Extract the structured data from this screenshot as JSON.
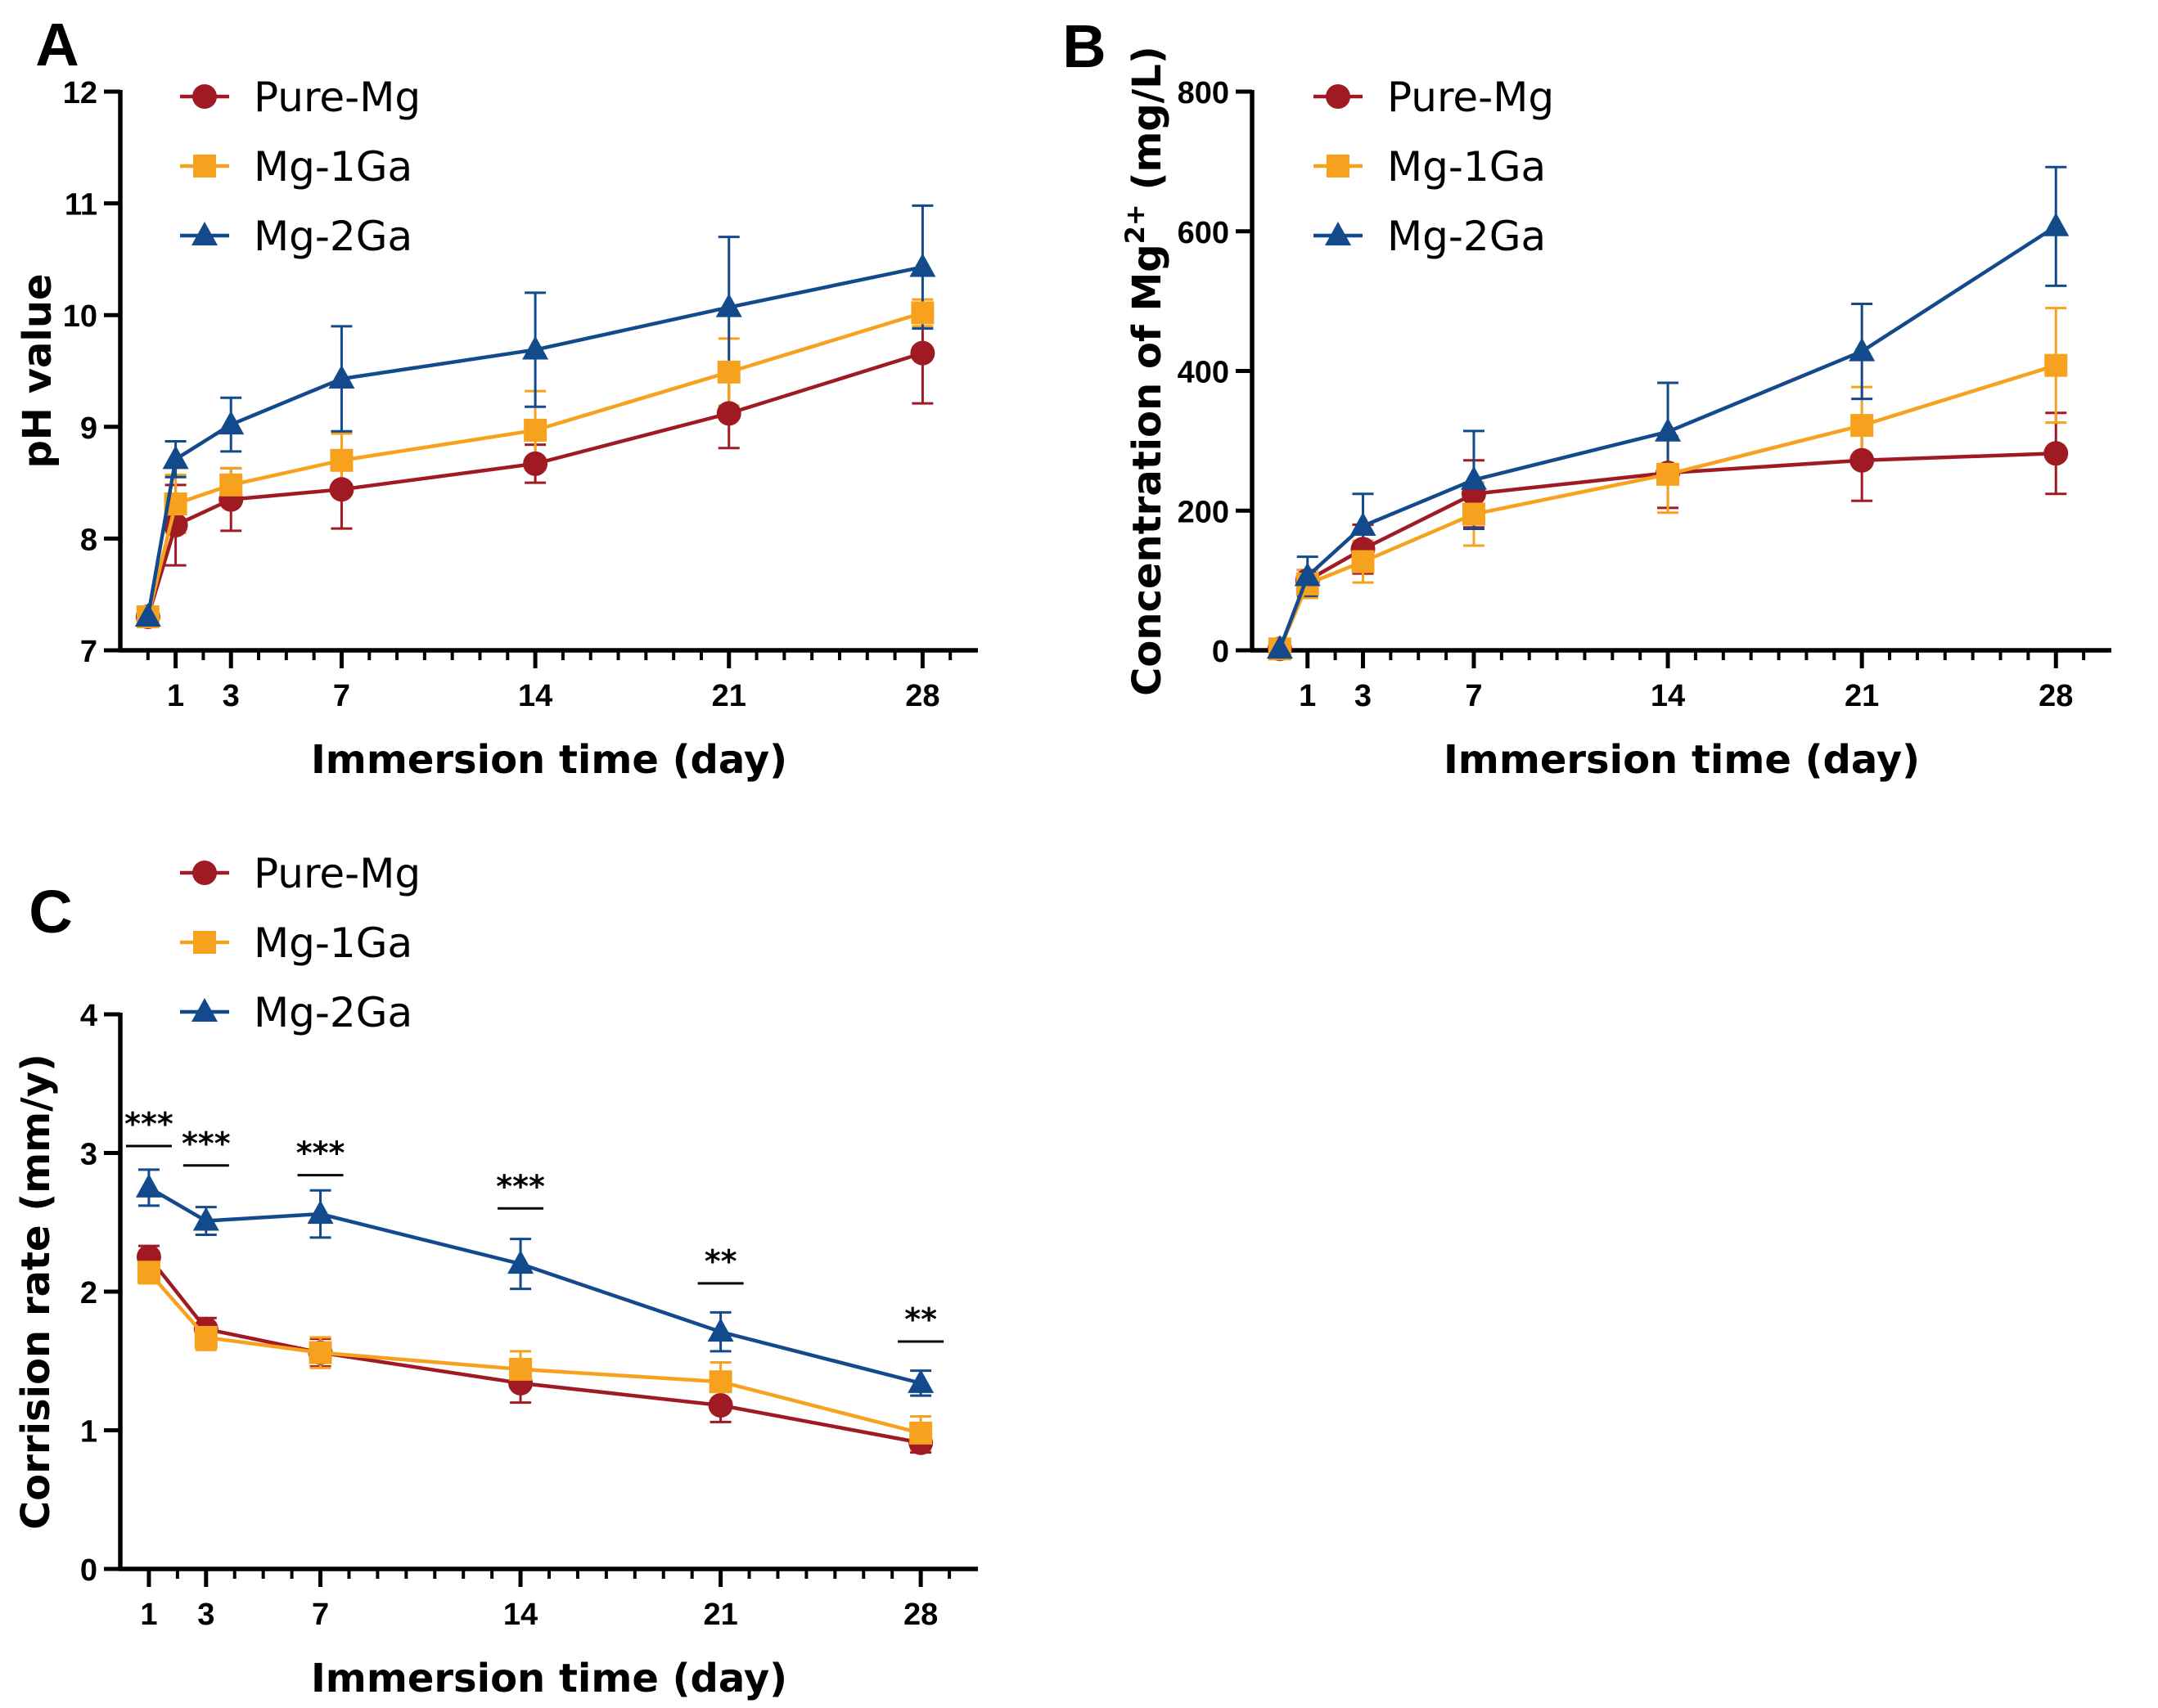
{
  "chart_data": [
    {
      "panel": "A",
      "type": "line",
      "xlabel": "Immersion time (day)",
      "ylabel": "pH value",
      "x": [
        0,
        1,
        3,
        7,
        14,
        21,
        28
      ],
      "x_ticks": [
        1,
        3,
        7,
        14,
        21,
        28
      ],
      "xlim": [
        -1,
        30
      ],
      "ylim": [
        7,
        12
      ],
      "y_ticks": [
        7,
        8,
        9,
        10,
        11,
        12
      ],
      "legend": "top-left",
      "series": [
        {
          "name": "Pure-Mg",
          "color": "#A01A24",
          "marker": "circle",
          "values": [
            7.3,
            8.12,
            8.35,
            8.44,
            8.67,
            9.12,
            9.66
          ],
          "errors": [
            0.05,
            0.36,
            0.28,
            0.35,
            0.17,
            0.31,
            0.45
          ]
        },
        {
          "name": "Mg-1Ga",
          "color": "#F6A21E",
          "marker": "square",
          "values": [
            7.3,
            8.31,
            8.48,
            8.7,
            8.97,
            9.49,
            10.02
          ],
          "errors": [
            0.05,
            0.26,
            0.15,
            0.24,
            0.35,
            0.3,
            0.12
          ]
        },
        {
          "name": "Mg-2Ga",
          "color": "#124A8C",
          "marker": "triangle",
          "values": [
            7.3,
            8.71,
            9.02,
            9.43,
            9.69,
            10.07,
            10.43
          ],
          "errors": [
            0.05,
            0.16,
            0.24,
            0.47,
            0.51,
            0.63,
            0.55
          ]
        }
      ]
    },
    {
      "panel": "B",
      "type": "line",
      "xlabel": "Immersion time (day)",
      "ylabel_main": "Concentration of Mg",
      "ylabel_sup": "2+",
      "ylabel_unit": " (mg/L)",
      "x": [
        0,
        1,
        3,
        7,
        14,
        21,
        28
      ],
      "x_ticks": [
        1,
        3,
        7,
        14,
        21,
        28
      ],
      "xlim": [
        -1,
        30
      ],
      "ylim": [
        0,
        800
      ],
      "y_ticks": [
        0,
        200,
        400,
        600,
        800
      ],
      "legend": "top-left",
      "series": [
        {
          "name": "Pure-Mg",
          "color": "#A01A24",
          "marker": "circle",
          "values": [
            2,
            100,
            145,
            224,
            254,
            272,
            282
          ],
          "errors": [
            3,
            15,
            35,
            48,
            50,
            58,
            58
          ]
        },
        {
          "name": "Mg-1Ga",
          "color": "#F6A21E",
          "marker": "square",
          "values": [
            2,
            95,
            127,
            195,
            252,
            322,
            408
          ],
          "errors": [
            3,
            20,
            30,
            45,
            55,
            55,
            82
          ]
        },
        {
          "name": "Mg-2Ga",
          "color": "#124A8C",
          "marker": "triangle",
          "values": [
            2,
            106,
            178,
            244,
            313,
            428,
            607
          ],
          "errors": [
            3,
            28,
            46,
            70,
            70,
            68,
            85
          ]
        }
      ]
    },
    {
      "panel": "C",
      "type": "line",
      "xlabel": "Immersion time (day)",
      "ylabel": "Corrision rate (mm/y)",
      "x": [
        1,
        3,
        7,
        14,
        21,
        28
      ],
      "x_ticks": [
        1,
        3,
        7,
        14,
        21,
        28
      ],
      "xlim": [
        0,
        30
      ],
      "ylim": [
        0,
        4
      ],
      "y_ticks": [
        0,
        1,
        2,
        3,
        4
      ],
      "legend": "above",
      "series": [
        {
          "name": "Pure-Mg",
          "color": "#A01A24",
          "marker": "circle",
          "values": [
            2.25,
            1.73,
            1.56,
            1.34,
            1.18,
            0.91
          ],
          "errors": [
            0.08,
            0.08,
            0.1,
            0.14,
            0.12,
            0.07
          ]
        },
        {
          "name": "Mg-1Ga",
          "color": "#F6A21E",
          "marker": "square",
          "values": [
            2.14,
            1.67,
            1.56,
            1.44,
            1.35,
            0.98
          ],
          "errors": [
            0.08,
            0.09,
            0.11,
            0.13,
            0.14,
            0.12
          ]
        },
        {
          "name": "Mg-2Ga",
          "color": "#124A8C",
          "marker": "triangle",
          "values": [
            2.75,
            2.51,
            2.56,
            2.2,
            1.71,
            1.34
          ],
          "errors": [
            0.13,
            0.1,
            0.17,
            0.18,
            0.14,
            0.09
          ]
        }
      ],
      "significance": [
        {
          "x": 1,
          "y": 3.05,
          "label": "***"
        },
        {
          "x": 3,
          "y": 2.91,
          "label": "***"
        },
        {
          "x": 7,
          "y": 2.84,
          "label": "***"
        },
        {
          "x": 14,
          "y": 2.6,
          "label": "***"
        },
        {
          "x": 21,
          "y": 2.06,
          "label": "**"
        },
        {
          "x": 28,
          "y": 1.64,
          "label": "**"
        }
      ]
    }
  ]
}
